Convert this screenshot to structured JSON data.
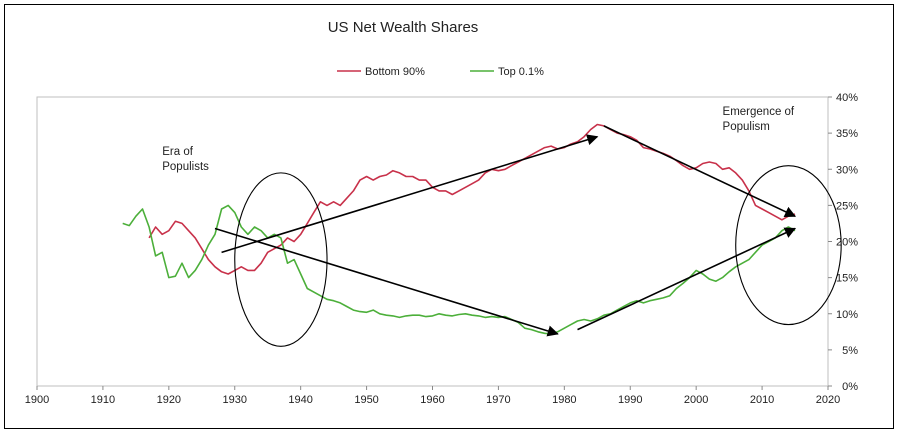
{
  "chart_data": {
    "type": "line",
    "title": "US Net Wealth Shares",
    "xlabel": "",
    "ylabel": "",
    "xlim": [
      1900,
      2020
    ],
    "ylim": [
      0,
      40
    ],
    "x_ticks": [
      1900,
      1910,
      1920,
      1930,
      1940,
      1950,
      1960,
      1970,
      1980,
      1990,
      2000,
      2010,
      2020
    ],
    "y_ticks": [
      "0%",
      "5%",
      "10%",
      "15%",
      "20%",
      "25%",
      "30%",
      "35%",
      "40%"
    ],
    "y_axis_position": "right",
    "grid": false,
    "legend_position": "top-center",
    "series": [
      {
        "name": "Bottom 90%",
        "color": "#c8314a",
        "points": [
          [
            1917,
            20.5
          ],
          [
            1918,
            22.0
          ],
          [
            1919,
            21.0
          ],
          [
            1920,
            21.5
          ],
          [
            1921,
            22.8
          ],
          [
            1922,
            22.5
          ],
          [
            1923,
            21.5
          ],
          [
            1924,
            20.5
          ],
          [
            1925,
            19.0
          ],
          [
            1926,
            17.5
          ],
          [
            1927,
            16.5
          ],
          [
            1928,
            15.8
          ],
          [
            1929,
            15.5
          ],
          [
            1930,
            16.0
          ],
          [
            1931,
            16.5
          ],
          [
            1932,
            16.0
          ],
          [
            1933,
            16.0
          ],
          [
            1934,
            17.0
          ],
          [
            1935,
            18.5
          ],
          [
            1936,
            19.0
          ],
          [
            1937,
            19.5
          ],
          [
            1938,
            20.5
          ],
          [
            1939,
            20.0
          ],
          [
            1940,
            21.0
          ],
          [
            1941,
            22.5
          ],
          [
            1942,
            24.0
          ],
          [
            1943,
            25.5
          ],
          [
            1944,
            25.0
          ],
          [
            1945,
            25.5
          ],
          [
            1946,
            25.0
          ],
          [
            1947,
            26.0
          ],
          [
            1948,
            27.0
          ],
          [
            1949,
            28.5
          ],
          [
            1950,
            29.0
          ],
          [
            1951,
            28.5
          ],
          [
            1952,
            29.0
          ],
          [
            1953,
            29.2
          ],
          [
            1954,
            29.8
          ],
          [
            1955,
            29.5
          ],
          [
            1956,
            29.0
          ],
          [
            1957,
            29.0
          ],
          [
            1958,
            28.5
          ],
          [
            1959,
            28.5
          ],
          [
            1960,
            27.5
          ],
          [
            1961,
            27.0
          ],
          [
            1962,
            27.0
          ],
          [
            1963,
            26.5
          ],
          [
            1964,
            27.0
          ],
          [
            1965,
            27.5
          ],
          [
            1966,
            28.0
          ],
          [
            1967,
            28.5
          ],
          [
            1968,
            29.5
          ],
          [
            1969,
            30.0
          ],
          [
            1970,
            29.8
          ],
          [
            1971,
            30.0
          ],
          [
            1972,
            30.5
          ],
          [
            1973,
            31.0
          ],
          [
            1974,
            31.5
          ],
          [
            1975,
            32.0
          ],
          [
            1976,
            32.5
          ],
          [
            1977,
            33.0
          ],
          [
            1978,
            33.2
          ],
          [
            1979,
            32.8
          ],
          [
            1980,
            33.0
          ],
          [
            1981,
            33.5
          ],
          [
            1982,
            33.8
          ],
          [
            1983,
            34.5
          ],
          [
            1984,
            35.5
          ],
          [
            1985,
            36.2
          ],
          [
            1986,
            36.0
          ],
          [
            1987,
            35.5
          ],
          [
            1988,
            35.0
          ],
          [
            1989,
            34.8
          ],
          [
            1990,
            34.5
          ],
          [
            1991,
            34.0
          ],
          [
            1992,
            33.0
          ],
          [
            1993,
            32.8
          ],
          [
            1994,
            32.5
          ],
          [
            1995,
            32.2
          ],
          [
            1996,
            31.8
          ],
          [
            1997,
            31.2
          ],
          [
            1998,
            30.5
          ],
          [
            1999,
            30.0
          ],
          [
            2000,
            30.2
          ],
          [
            2001,
            30.8
          ],
          [
            2002,
            31.0
          ],
          [
            2003,
            30.8
          ],
          [
            2004,
            30.0
          ],
          [
            2005,
            30.2
          ],
          [
            2006,
            29.5
          ],
          [
            2007,
            28.5
          ],
          [
            2008,
            27.0
          ],
          [
            2009,
            25.0
          ],
          [
            2010,
            24.5
          ],
          [
            2011,
            24.0
          ],
          [
            2012,
            23.5
          ],
          [
            2013,
            23.0
          ],
          [
            2014,
            23.5
          ],
          [
            2015,
            23.8
          ]
        ]
      },
      {
        "name": "Top 0.1%",
        "color": "#4caf3a",
        "points": [
          [
            1913,
            22.5
          ],
          [
            1914,
            22.2
          ],
          [
            1915,
            23.5
          ],
          [
            1916,
            24.5
          ],
          [
            1917,
            22.0
          ],
          [
            1918,
            18.0
          ],
          [
            1919,
            18.5
          ],
          [
            1920,
            15.0
          ],
          [
            1921,
            15.2
          ],
          [
            1922,
            17.0
          ],
          [
            1923,
            15.0
          ],
          [
            1924,
            16.0
          ],
          [
            1925,
            17.5
          ],
          [
            1926,
            19.5
          ],
          [
            1927,
            21.0
          ],
          [
            1928,
            24.5
          ],
          [
            1929,
            25.0
          ],
          [
            1930,
            24.0
          ],
          [
            1931,
            22.0
          ],
          [
            1932,
            21.0
          ],
          [
            1933,
            22.0
          ],
          [
            1934,
            21.5
          ],
          [
            1935,
            20.5
          ],
          [
            1936,
            21.0
          ],
          [
            1937,
            20.5
          ],
          [
            1938,
            17.0
          ],
          [
            1939,
            17.5
          ],
          [
            1940,
            15.5
          ],
          [
            1941,
            13.5
          ],
          [
            1942,
            13.0
          ],
          [
            1943,
            12.5
          ],
          [
            1944,
            12.0
          ],
          [
            1945,
            11.8
          ],
          [
            1946,
            11.5
          ],
          [
            1947,
            11.0
          ],
          [
            1948,
            10.5
          ],
          [
            1949,
            10.3
          ],
          [
            1950,
            10.2
          ],
          [
            1951,
            10.5
          ],
          [
            1952,
            10.0
          ],
          [
            1953,
            9.8
          ],
          [
            1954,
            9.7
          ],
          [
            1955,
            9.5
          ],
          [
            1956,
            9.7
          ],
          [
            1957,
            9.8
          ],
          [
            1958,
            9.8
          ],
          [
            1959,
            9.6
          ],
          [
            1960,
            9.7
          ],
          [
            1961,
            10.0
          ],
          [
            1962,
            9.8
          ],
          [
            1963,
            9.7
          ],
          [
            1964,
            9.9
          ],
          [
            1965,
            10.0
          ],
          [
            1966,
            9.8
          ],
          [
            1967,
            9.7
          ],
          [
            1968,
            9.5
          ],
          [
            1969,
            9.6
          ],
          [
            1970,
            9.5
          ],
          [
            1971,
            9.6
          ],
          [
            1972,
            9.2
          ],
          [
            1973,
            8.8
          ],
          [
            1974,
            8.0
          ],
          [
            1975,
            7.8
          ],
          [
            1976,
            7.5
          ],
          [
            1977,
            7.3
          ],
          [
            1978,
            7.2
          ],
          [
            1979,
            7.5
          ],
          [
            1980,
            8.0
          ],
          [
            1981,
            8.5
          ],
          [
            1982,
            9.0
          ],
          [
            1983,
            9.2
          ],
          [
            1984,
            9.0
          ],
          [
            1985,
            9.3
          ],
          [
            1986,
            9.8
          ],
          [
            1987,
            10.0
          ],
          [
            1988,
            10.5
          ],
          [
            1989,
            11.0
          ],
          [
            1990,
            11.5
          ],
          [
            1991,
            11.8
          ],
          [
            1992,
            11.5
          ],
          [
            1993,
            11.8
          ],
          [
            1994,
            12.0
          ],
          [
            1995,
            12.2
          ],
          [
            1996,
            12.5
          ],
          [
            1997,
            13.5
          ],
          [
            1998,
            14.2
          ],
          [
            1999,
            15.0
          ],
          [
            2000,
            16.0
          ],
          [
            2001,
            15.5
          ],
          [
            2002,
            14.8
          ],
          [
            2003,
            14.5
          ],
          [
            2004,
            15.0
          ],
          [
            2005,
            15.8
          ],
          [
            2006,
            16.5
          ],
          [
            2007,
            17.0
          ],
          [
            2008,
            17.5
          ],
          [
            2009,
            18.5
          ],
          [
            2010,
            19.5
          ],
          [
            2011,
            20.0
          ],
          [
            2012,
            20.5
          ],
          [
            2013,
            21.5
          ],
          [
            2014,
            22.0
          ],
          [
            2015,
            21.5
          ]
        ]
      }
    ],
    "annotations": [
      {
        "id": "era-of-populists",
        "lines": [
          "Era of",
          "Populists"
        ],
        "at": [
          1919,
          32
        ]
      },
      {
        "id": "emergence-of-populism",
        "lines": [
          "Emergence of",
          "Populism"
        ],
        "at": [
          2004,
          37.5
        ]
      }
    ],
    "ellipses": [
      {
        "id": "ellipse-1930s",
        "center": [
          1937,
          17.5
        ],
        "radii_data": [
          7,
          12
        ]
      },
      {
        "id": "ellipse-2010s",
        "center": [
          2014,
          19.5
        ],
        "radii_data": [
          8,
          11
        ]
      }
    ],
    "arrows": [
      {
        "id": "arrow-bottom90-rise",
        "from": [
          1928,
          18.5
        ],
        "to": [
          1985,
          34.5
        ]
      },
      {
        "id": "arrow-top01-fall",
        "from": [
          1927,
          21.8
        ],
        "to": [
          1979,
          7.2
        ]
      },
      {
        "id": "arrow-bottom90-fall",
        "from": [
          1986,
          36.0
        ],
        "to": [
          2015,
          23.5
        ]
      },
      {
        "id": "arrow-top01-rise",
        "from": [
          1982,
          7.8
        ],
        "to": [
          2015,
          21.8
        ]
      }
    ]
  }
}
